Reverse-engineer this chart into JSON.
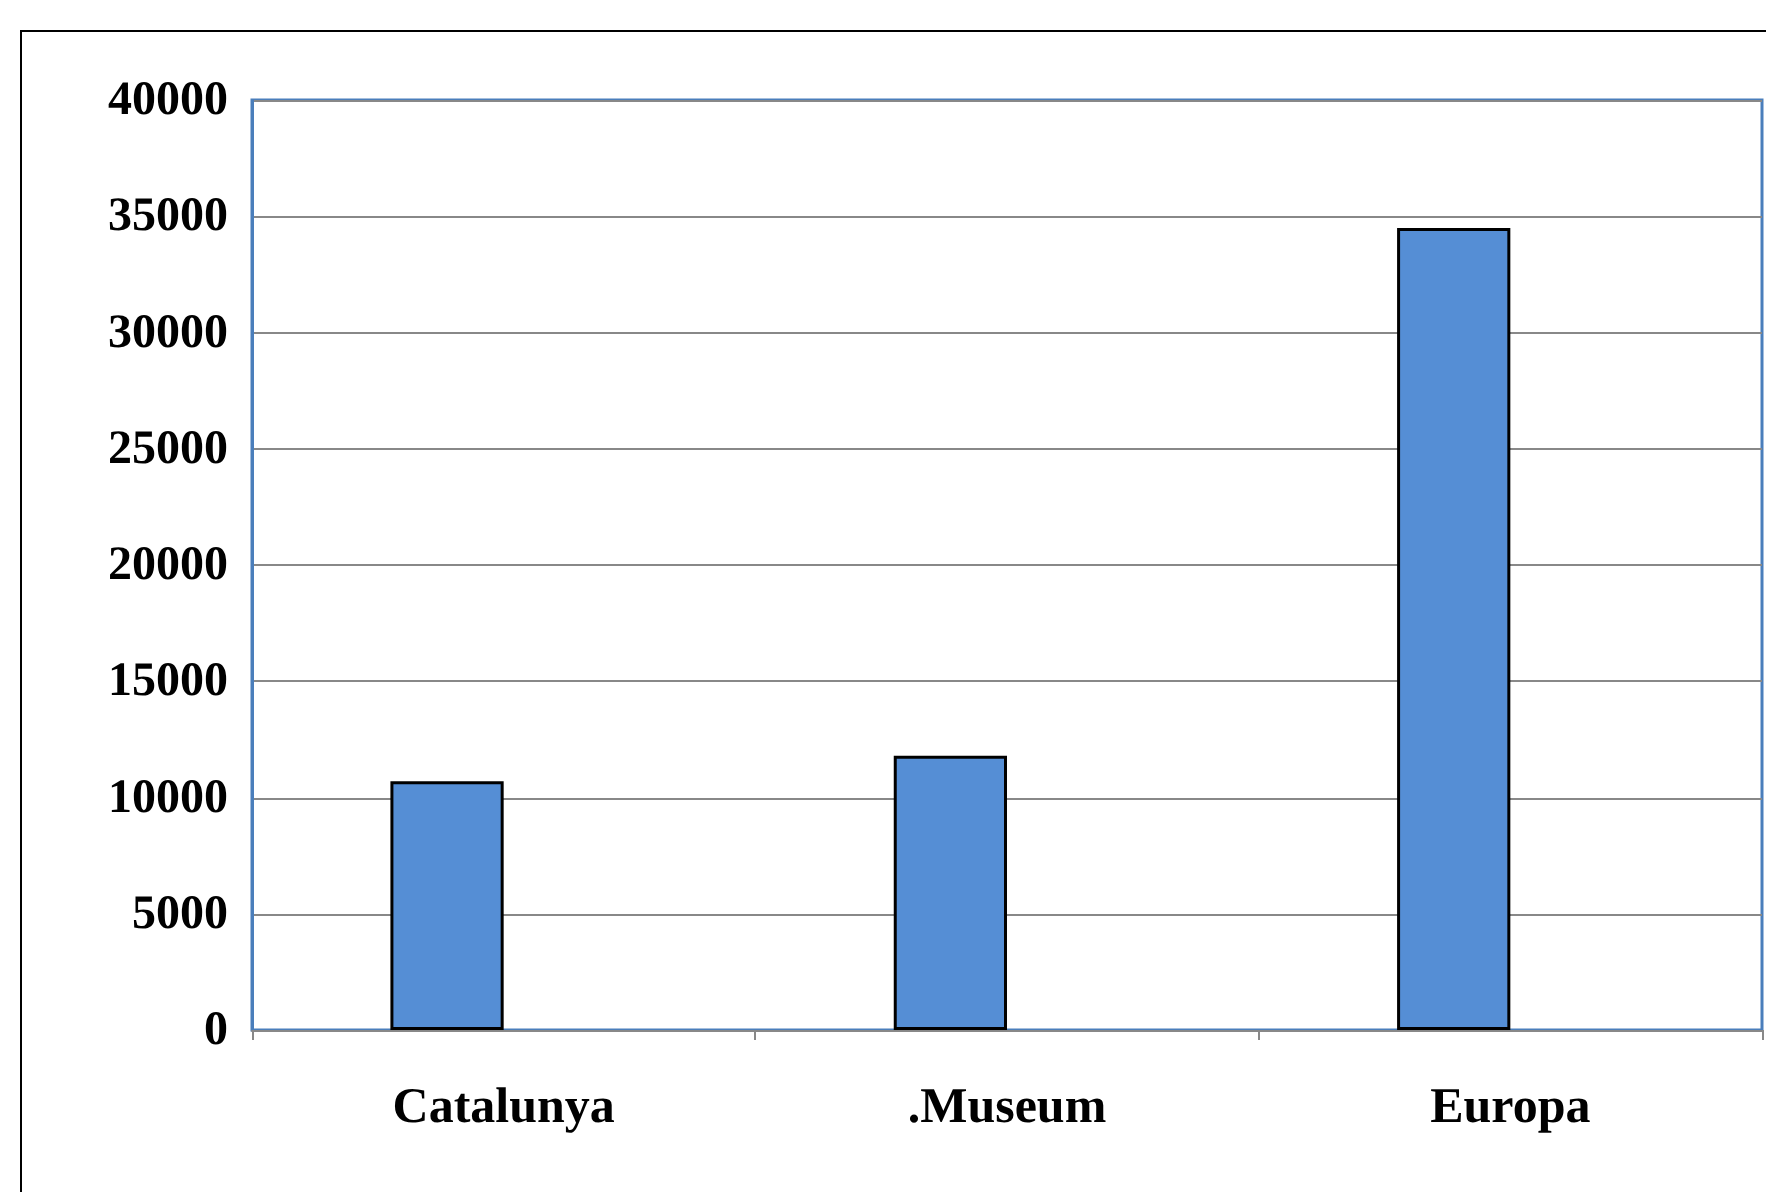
{
  "chart_data": {
    "type": "bar",
    "categories": [
      "Catalunya",
      ".Museum",
      "Europa"
    ],
    "values": [
      10700,
      11800,
      34500
    ],
    "color": "#558ed5",
    "ylim": [
      0,
      40000
    ],
    "yticks": [
      0,
      5000,
      10000,
      15000,
      20000,
      25000,
      30000,
      35000,
      40000
    ],
    "grid": "y"
  }
}
